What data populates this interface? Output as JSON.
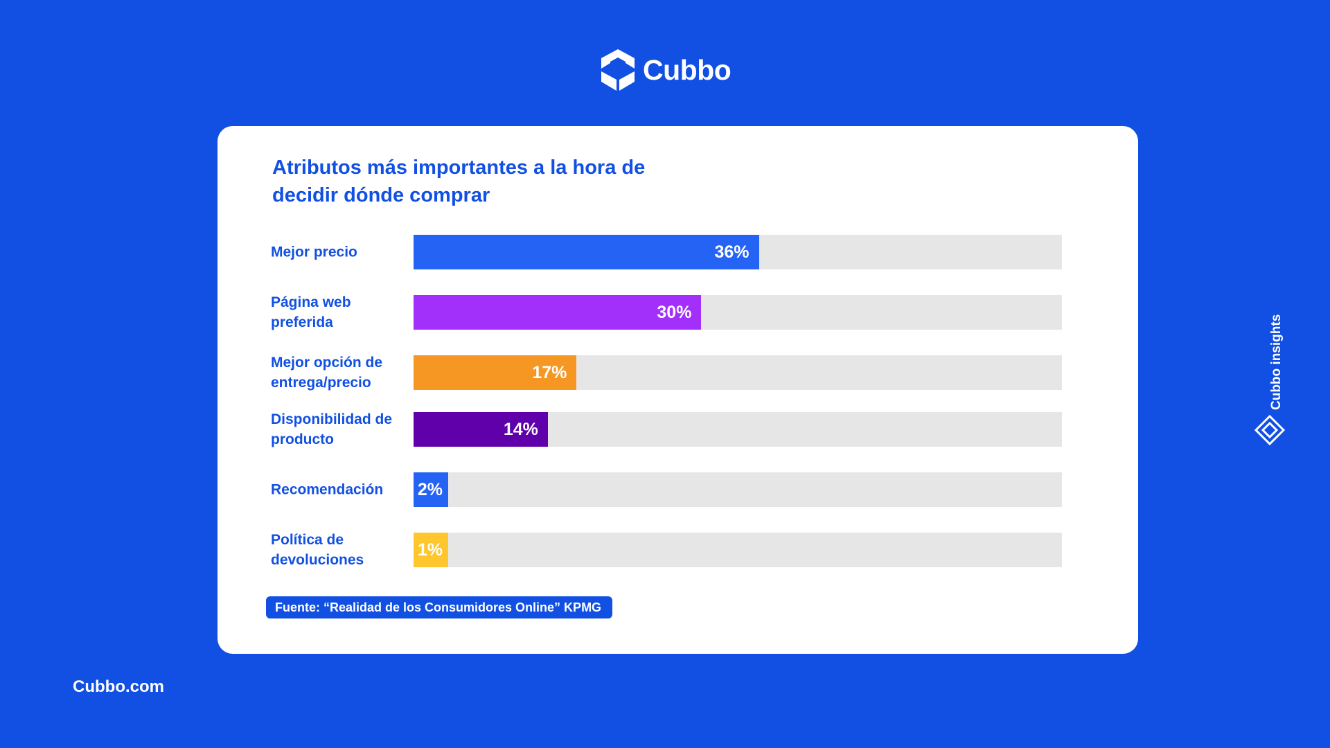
{
  "brand": {
    "name": "Cubbo",
    "url": "Cubbo.com",
    "side_label": "Cubbo insights"
  },
  "colors": {
    "background": "#1150E3",
    "track": "#E6E6E6"
  },
  "icons": {
    "logo": "cube-logo-icon",
    "side": "diamond-layers-icon"
  },
  "chart_data": {
    "type": "bar",
    "orientation": "horizontal",
    "title": "Atributos más importantes a la hora de decidir dónde comprar",
    "categories": [
      "Mejor precio",
      "Página web preferida",
      "Mejor opción de entrega/precio",
      "Disponibilidad de producto",
      "Recomendación",
      "Política de devoluciones"
    ],
    "values": [
      36,
      30,
      17,
      14,
      2,
      1
    ],
    "value_labels": [
      "36%",
      "30%",
      "17%",
      "14%",
      "2%",
      "1%"
    ],
    "bar_colors": [
      "#2563F5",
      "#A22FFA",
      "#F59722",
      "#5F00AA",
      "#2563F5",
      "#FFC62D"
    ],
    "xlim": [
      0,
      100
    ],
    "grid": false,
    "legend": "none",
    "source": "Fuente:  “Realidad de los Consumidores Online” KPMG"
  }
}
